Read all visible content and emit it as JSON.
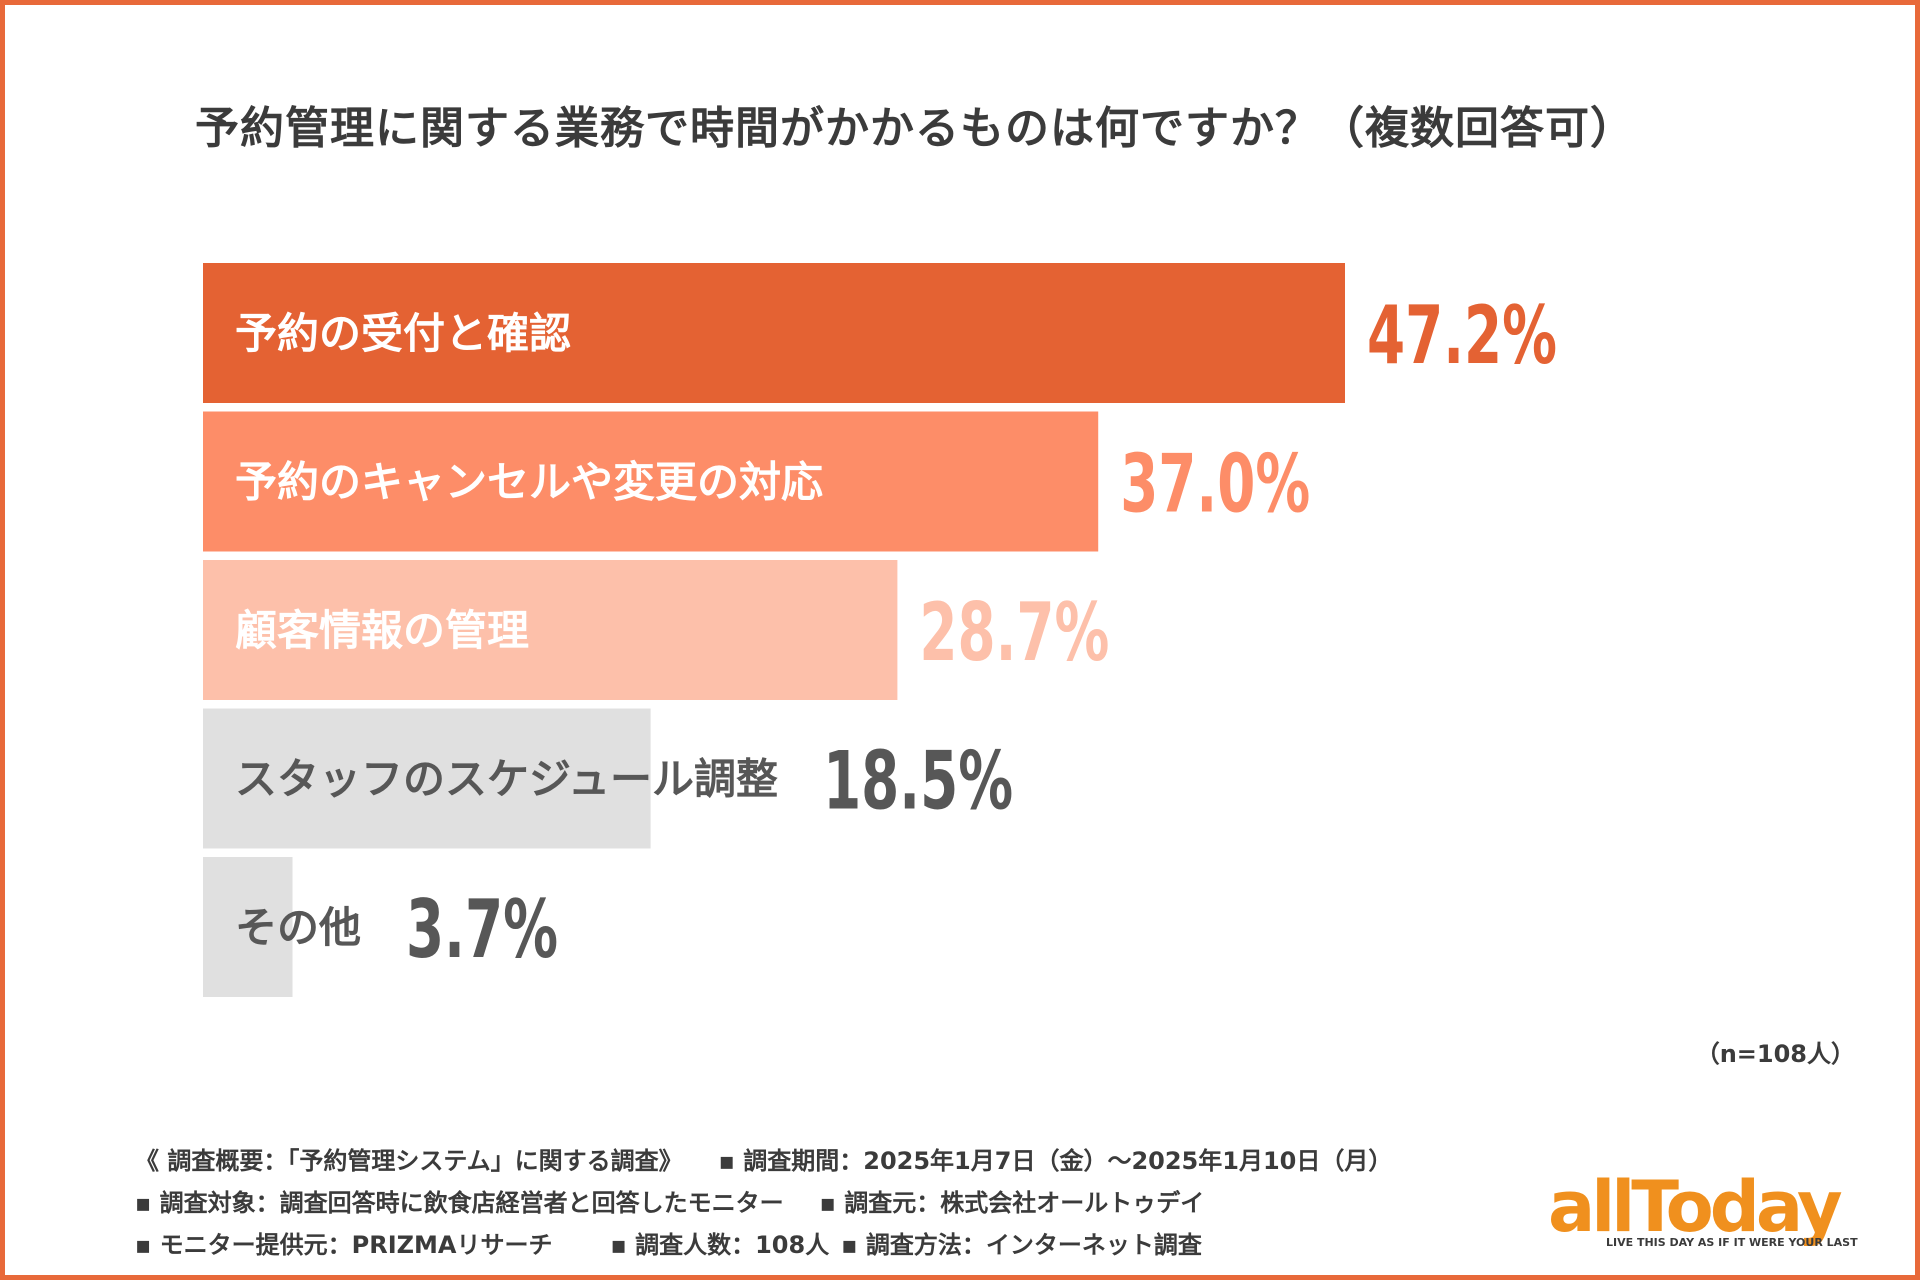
{
  "title": "予約管理に関する業務で時間がかかるものは何ですか？（複数回答可）",
  "chart_data": {
    "type": "bar",
    "orientation": "horizontal",
    "title": "予約管理に関する業務で時間がかかるものは何ですか？（複数回答可）",
    "categories": [
      "予約の受付と確認",
      "予約のキャンセルや変更の対応",
      "顧客情報の管理",
      "スタッフのスケジュール調整",
      "その他"
    ],
    "values": [
      47.2,
      37.0,
      28.7,
      18.5,
      3.7
    ],
    "value_labels": [
      "47.2%",
      "37.0%",
      "28.7%",
      "18.5%",
      "3.7%"
    ],
    "unit": "%",
    "xlim": [
      0,
      50
    ],
    "bar_colors": [
      "#e46233",
      "#fd8d68",
      "#fdc0aa",
      "#e0e0e0",
      "#e0e0e0"
    ],
    "label_colors": [
      "#ffffff",
      "#ffffff",
      "#ffffff",
      "#575757",
      "#575757"
    ],
    "value_colors": [
      "#e46233",
      "#fd8d68",
      "#fdc0aa",
      "#575757",
      "#575757"
    ],
    "xlabel": "",
    "ylabel": "",
    "grid": false
  },
  "sample_size": "（n=108人）",
  "notes": {
    "line1a": "《 調査概要：「予約管理システム」に関する調査》",
    "line1b": "▪ 調査期間：2025年1月7日（金）～2025年1月10日（月）",
    "line2a": "▪ 調査対象：調査回答時に飲食店経営者と回答したモニター",
    "line2b": "▪ 調査元：株式会社オールトゥデイ",
    "line3a": "▪ モニター提供元：PRIZMAリサーチ",
    "line3b": "▪ 調査人数：108人",
    "line3c": "▪ 調査方法：インターネット調査"
  },
  "logo": {
    "word": "allToday",
    "tagline": "LIVE THIS DAY AS IF IT WERE YOUR LAST"
  },
  "colors": {
    "frame": "#e8693a",
    "logo": "#f0901e",
    "text": "#3b3b3b"
  }
}
